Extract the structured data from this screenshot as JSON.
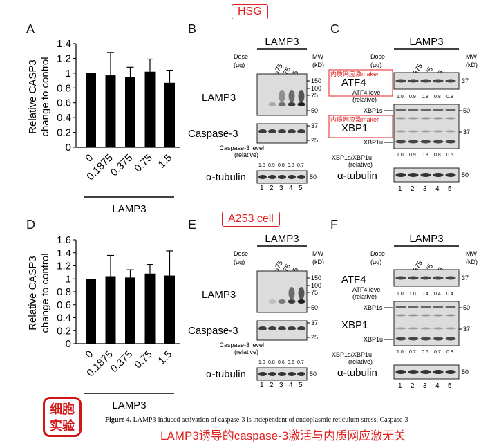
{
  "header": {
    "hsg": "HSG",
    "a253": "A253 cell"
  },
  "panels": {
    "A": "A",
    "B": "B",
    "C": "C",
    "D": "D",
    "E": "E",
    "F": "F"
  },
  "bar_axis": {
    "ylabel_line1": "Relative CASP3",
    "ylabel_line2": "change to control",
    "xgroup": "LAMP3"
  },
  "chart_data": [
    {
      "panel": "A",
      "type": "bar",
      "categories": [
        "0",
        "0.1875",
        "0.375",
        "0.75",
        "1.5"
      ],
      "values": [
        1.0,
        0.97,
        0.95,
        1.02,
        0.87
      ],
      "errors": [
        0.0,
        0.31,
        0.13,
        0.17,
        0.17
      ],
      "ylim": [
        0,
        1.4
      ],
      "yticks": [
        "0",
        "0.2",
        "0.4",
        "0.6",
        "0.8",
        "1",
        "1.2",
        "1.4"
      ],
      "ylabel": "Relative CASP3 change to control",
      "xlabel": "LAMP3"
    },
    {
      "panel": "D",
      "type": "bar",
      "categories": [
        "0",
        "0.1875",
        "0.375",
        "0.75",
        "1.5"
      ],
      "values": [
        1.0,
        1.04,
        1.02,
        1.08,
        1.05
      ],
      "errors": [
        0.0,
        0.32,
        0.12,
        0.14,
        0.38
      ],
      "ylim": [
        0,
        1.6
      ],
      "yticks": [
        "0",
        "0.2",
        "0.4",
        "0.6",
        "0.8",
        "1",
        "1.2",
        "1.4",
        "1.6"
      ],
      "ylabel": "Relative CASP3 change to control",
      "xlabel": "LAMP3"
    }
  ],
  "blot_common": {
    "lamp3": "LAMP3",
    "dose": "Dose",
    "dose_unit": "(µg)",
    "mw": "MW",
    "mw_unit": "(kD)",
    "dose_labels": [
      "0",
      "0.1875",
      "0.375",
      "0.75",
      "1.5"
    ],
    "lanes": [
      "1",
      "2",
      "3",
      "4",
      "5"
    ],
    "caspase3": "Caspase-3",
    "cas_level_1": "Caspase-3 level",
    "cas_level_2": "(relative)",
    "atf4": "ATF4",
    "atf4_level_1": "ATF4 level",
    "atf4_level_2": "(relative)",
    "xbp1": "XBP1",
    "xbp1s": "XBP1s",
    "xbp1u": "XBP1u",
    "xbp1_ratio_1": "XBP1s/XBP1u",
    "xbp1_ratio_2": "(relative)",
    "tubulin": "α-tubulin",
    "watermark": "内质网应激maker"
  },
  "B": {
    "mw": [
      "150",
      "100",
      "75",
      "50",
      "37",
      "25",
      "50"
    ],
    "cas_vals": [
      "1.0",
      "0.9",
      "0.8",
      "0.8",
      "0.7"
    ]
  },
  "C": {
    "mw": [
      "37",
      "50",
      "37",
      "50"
    ],
    "atf4_vals": [
      "1.0",
      "0.9",
      "0.8",
      "0.8",
      "0.8"
    ],
    "xbp_vals": [
      "1.0",
      "0.9",
      "0.8",
      "0.8",
      "0.5"
    ]
  },
  "E": {
    "mw": [
      "150",
      "100",
      "75",
      "50",
      "37",
      "25",
      "50"
    ],
    "cas_vals": [
      "1.0",
      "0.8",
      "0.6",
      "0.6",
      "0.7"
    ]
  },
  "F": {
    "mw": [
      "37",
      "50",
      "37",
      "50"
    ],
    "atf4_vals": [
      "1.0",
      "1.0",
      "0.4",
      "0.4",
      "0.4"
    ],
    "xbp_vals": [
      "1.0",
      "0.7",
      "0.6",
      "0.7",
      "0.8"
    ]
  },
  "caption": {
    "logo_line1": "细胞",
    "logo_line2": "实验",
    "figure": "Figure 4.",
    "text": "LAMP3-induced activation of caspase-3 is independent of endoplasmic reticulum stress. Caspase-3",
    "chinese": "LAMP3诱导的caspase-3激活与内质网应激无关"
  }
}
